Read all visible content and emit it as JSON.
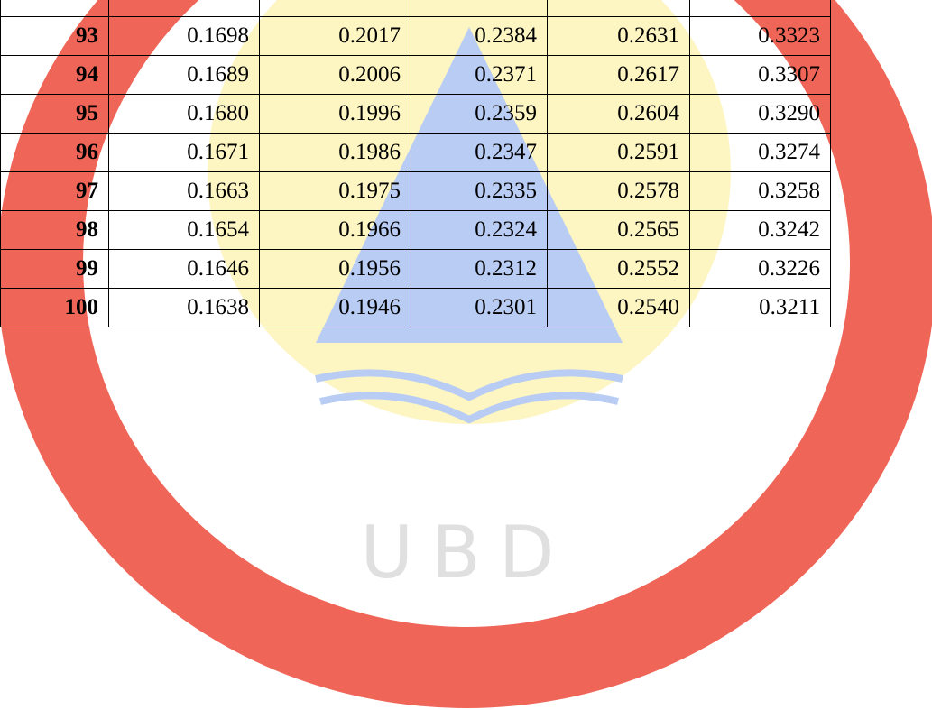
{
  "watermark": {
    "text": "UBD"
  },
  "table": {
    "rows": [
      [
        "93",
        "0.1698",
        "0.2017",
        "0.2384",
        "0.2631",
        "0.3323"
      ],
      [
        "94",
        "0.1689",
        "0.2006",
        "0.2371",
        "0.2617",
        "0.3307"
      ],
      [
        "95",
        "0.1680",
        "0.1996",
        "0.2359",
        "0.2604",
        "0.3290"
      ],
      [
        "96",
        "0.1671",
        "0.1986",
        "0.2347",
        "0.2591",
        "0.3274"
      ],
      [
        "97",
        "0.1663",
        "0.1975",
        "0.2335",
        "0.2578",
        "0.3258"
      ],
      [
        "98",
        "0.1654",
        "0.1966",
        "0.2324",
        "0.2565",
        "0.3242"
      ],
      [
        "99",
        "0.1646",
        "0.1956",
        "0.2312",
        "0.2552",
        "0.3226"
      ],
      [
        "100",
        "0.1638",
        "0.1946",
        "0.2301",
        "0.2540",
        "0.3211"
      ]
    ]
  }
}
